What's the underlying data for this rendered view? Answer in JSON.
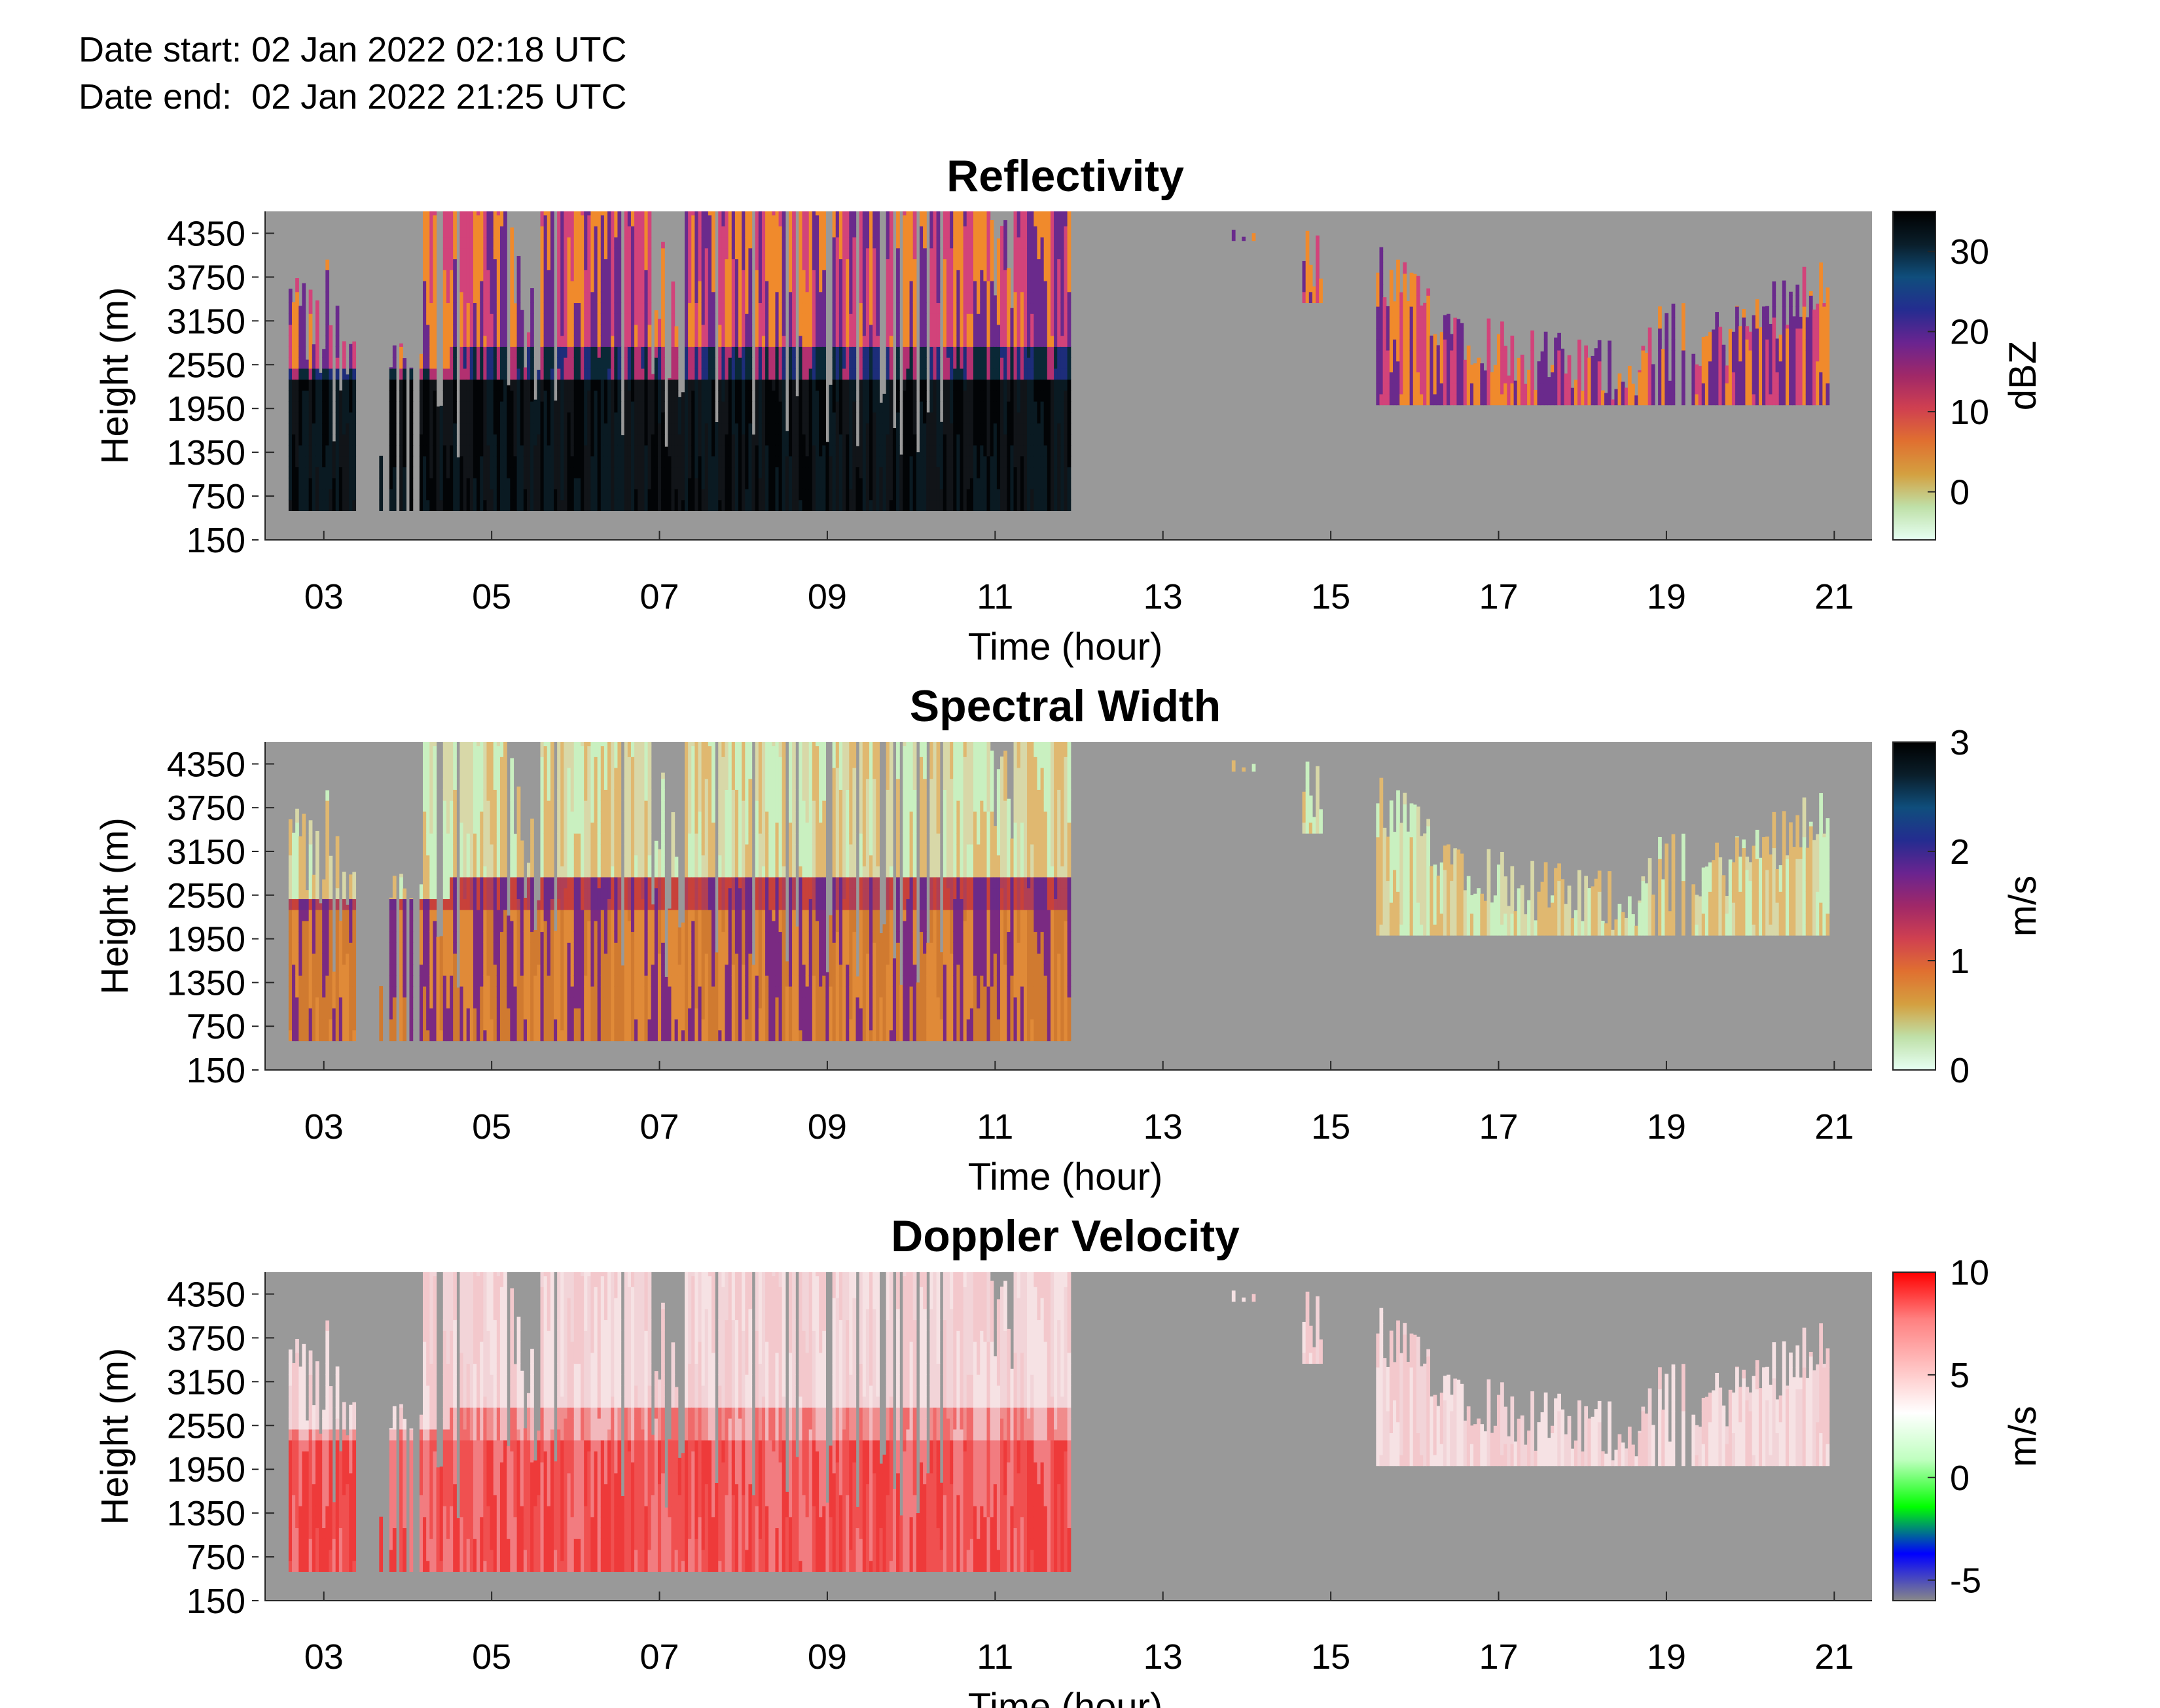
{
  "header": {
    "date_start": "Date start: 02 Jan 2022 02:18 UTC",
    "date_end": "Date end:  02 Jan 2022 21:25 UTC"
  },
  "chart_data": [
    {
      "type": "heatmap",
      "title": "Reflectivity",
      "xlabel": "Time (hour)",
      "ylabel": "Height (m)",
      "colorbar_label": "dBZ",
      "x_ticks": [
        "03",
        "05",
        "07",
        "09",
        "11",
        "13",
        "15",
        "17",
        "19",
        "21"
      ],
      "y_ticks": [
        "150",
        "750",
        "1350",
        "1950",
        "2550",
        "3150",
        "3750",
        "4350"
      ],
      "xlim": [
        2.3,
        21.45
      ],
      "ylim": [
        150,
        4650
      ],
      "colorbar_ticks": [
        "30",
        "20",
        "10",
        "0"
      ],
      "colorbar_range": [
        -6,
        35
      ],
      "colormap": [
        "#e6fff3",
        "#bfe0a8",
        "#d4a040",
        "#e07030",
        "#d04050",
        "#a02868",
        "#6a2490",
        "#242c90",
        "#0f4e7c",
        "#0a1e2a",
        "#000000"
      ],
      "background": "#999999",
      "echo_periods_hours": [
        [
          2.5,
          3.3
        ],
        [
          3.7,
          11.9
        ],
        [
          13.8,
          14.2
        ],
        [
          14.65,
          14.9
        ],
        [
          15.45,
          20.9
        ]
      ],
      "scale": [
        [
          "#f08a2c",
          "#d2437a",
          "#6a2a8c"
        ],
        [
          "#b23070",
          "#1d2d7a",
          "#0a2836"
        ],
        [
          "#111418",
          "#0a1a22",
          "#020406"
        ]
      ]
    },
    {
      "type": "heatmap",
      "title": "Spectral Width",
      "xlabel": "Time (hour)",
      "ylabel": "Height (m)",
      "colorbar_label": "m/s",
      "x_ticks": [
        "03",
        "05",
        "07",
        "09",
        "11",
        "13",
        "15",
        "17",
        "19",
        "21"
      ],
      "y_ticks": [
        "150",
        "750",
        "1350",
        "1950",
        "2550",
        "3150",
        "3750",
        "4350"
      ],
      "xlim": [
        2.3,
        21.45
      ],
      "ylim": [
        150,
        4650
      ],
      "colorbar_ticks": [
        "3",
        "2",
        "1",
        "0"
      ],
      "colorbar_range": [
        0,
        3
      ],
      "colormap": [
        "#e6fff3",
        "#bfe0a8",
        "#d4a040",
        "#e07030",
        "#d04050",
        "#a02868",
        "#6a2490",
        "#242c90",
        "#0f4e7c",
        "#0a1e2a",
        "#000000"
      ],
      "background": "#999999",
      "echo_periods_hours": [
        [
          2.5,
          3.3
        ],
        [
          3.7,
          11.9
        ],
        [
          13.8,
          14.2
        ],
        [
          14.65,
          14.9
        ],
        [
          15.45,
          20.9
        ]
      ],
      "scale": [
        [
          "#c9f0c0",
          "#d8d8a8",
          "#e0b870"
        ],
        [
          "#c8413a",
          "#b03f55",
          "#6b2a88"
        ],
        [
          "#e08a38",
          "#d07a30",
          "#7a2a82"
        ]
      ]
    },
    {
      "type": "heatmap",
      "title": "Doppler Velocity",
      "xlabel": "Time (hour)",
      "ylabel": "Height (m)",
      "colorbar_label": "m/s",
      "x_ticks": [
        "03",
        "05",
        "07",
        "09",
        "11",
        "13",
        "15",
        "17",
        "19",
        "21"
      ],
      "y_ticks": [
        "150",
        "750",
        "1350",
        "1950",
        "2550",
        "3150",
        "3750",
        "4350"
      ],
      "xlim": [
        2.3,
        21.45
      ],
      "ylim": [
        150,
        4650
      ],
      "colorbar_ticks": [
        "10",
        "5",
        "0",
        "-5"
      ],
      "colorbar_range": [
        -6,
        10
      ],
      "colormap": [
        "#888888",
        "#0000ff",
        "#00ff00",
        "#bfffbf",
        "#ffffff",
        "#ffc0c0",
        "#ff8080",
        "#ff0000"
      ],
      "background": "#999999",
      "echo_periods_hours": [
        [
          2.5,
          3.3
        ],
        [
          3.7,
          11.9
        ],
        [
          13.8,
          14.2
        ],
        [
          14.65,
          14.9
        ],
        [
          15.45,
          20.9
        ]
      ],
      "scale": [
        [
          "#f3c8cc",
          "#f2d4d8",
          "#f6e2e4"
        ],
        [
          "#f06a6a",
          "#f08c8c",
          "#f2b8bc"
        ],
        [
          "#f05050",
          "#ee3a3a",
          "#f27c80"
        ]
      ]
    }
  ]
}
